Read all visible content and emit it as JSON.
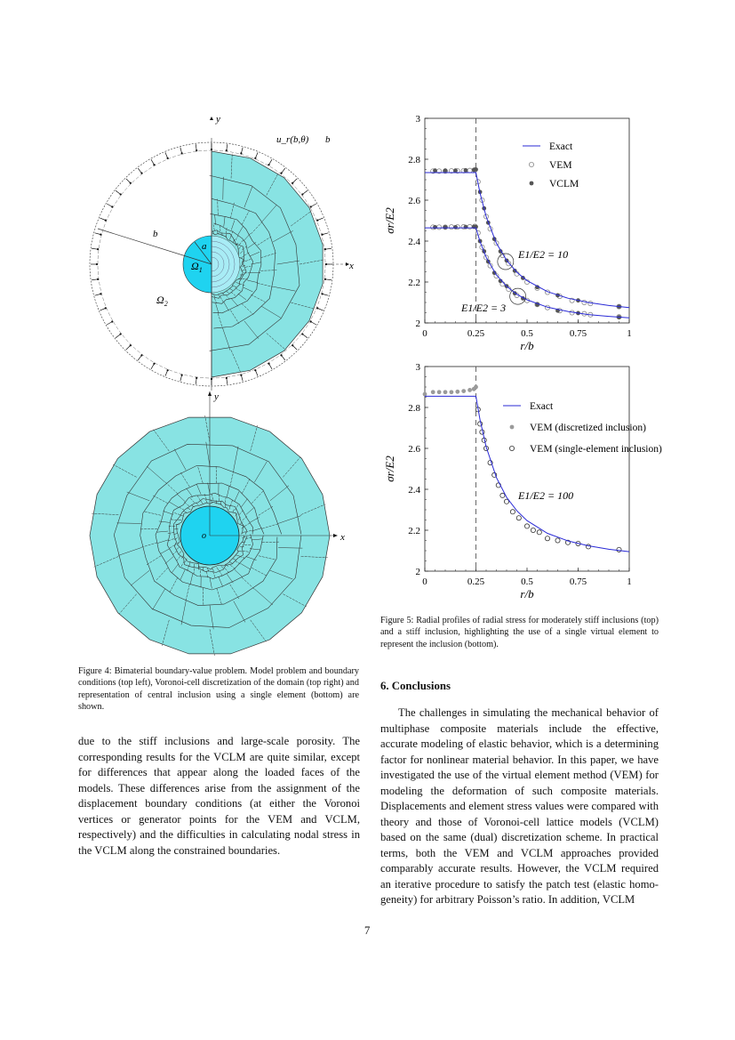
{
  "figure4": {
    "labels": {
      "y_top": "y",
      "x_top": "x",
      "u_r": "u_r(b,θ)",
      "b_top": "b",
      "b_radius": "b",
      "a_radius": "a",
      "omega1": "Ω1",
      "omega2": "Ω2",
      "y_bottom": "y",
      "x_bottom": "x",
      "origin": "o"
    },
    "colors": {
      "matrix": "#88e3e3",
      "inclusion": "#1fd3f0"
    },
    "caption": "Figure 4: Bimaterial boundary-value problem. Model problem and boundary conditions (top left), Voronoi-cell discretization of the domain (top right) and representation of central inclusion using a single element (bottom) are shown."
  },
  "figure5": {
    "caption": "Figure 5: Radial profiles of radial stress for moderately stiff inclusions (top) and a stiff inclusion, highlighting the use of a single virtual element to represent the inclusion (bottom)."
  },
  "chart_data": [
    {
      "type": "scatter",
      "xlabel": "r/b",
      "ylabel": "σr/E2",
      "xlim": [
        0,
        1
      ],
      "ylim": [
        2,
        3
      ],
      "xticks": [
        "0",
        "0.25",
        "0.5",
        "0.75",
        "1"
      ],
      "yticks": [
        "2",
        "2.2",
        "2.4",
        "2.6",
        "2.8",
        "3"
      ],
      "grid": false,
      "legend_placement": "top-right",
      "reference_line_x": 0.25,
      "legend": [
        "Exact",
        "VEM",
        "VCLM"
      ],
      "annotations": [
        {
          "text": "E1/E2 = 10",
          "x": 0.4,
          "y": 2.3
        },
        {
          "text": "E1/E2 = 3",
          "x": 0.45,
          "y": 2.13
        }
      ],
      "series": [
        {
          "name": "Exact",
          "kind": "line",
          "color": "#2a2ad6",
          "group": "E1/E2 = 10",
          "x": [
            0,
            0.25,
            0.27,
            0.3,
            0.35,
            0.4,
            0.45,
            0.5,
            0.6,
            0.7,
            0.8,
            0.9,
            1
          ],
          "y": [
            2.735,
            2.735,
            2.635,
            2.52,
            2.39,
            2.306,
            2.248,
            2.207,
            2.153,
            2.121,
            2.1,
            2.085,
            2.075
          ]
        },
        {
          "name": "Exact",
          "kind": "line",
          "color": "#2a2ad6",
          "group": "E1/E2 = 3",
          "x": [
            0,
            0.25,
            0.27,
            0.3,
            0.35,
            0.4,
            0.45,
            0.5,
            0.6,
            0.7,
            0.8,
            0.9,
            1
          ],
          "y": [
            2.465,
            2.465,
            2.398,
            2.321,
            2.235,
            2.179,
            2.14,
            2.113,
            2.077,
            2.056,
            2.041,
            2.032,
            2.025
          ]
        },
        {
          "name": "VEM",
          "kind": "open",
          "color": "#8a8a8a",
          "group": "E1/E2 = 10",
          "x": [
            0.04,
            0.07,
            0.1,
            0.13,
            0.16,
            0.19,
            0.22,
            0.245,
            0.26,
            0.28,
            0.3,
            0.32,
            0.35,
            0.38,
            0.41,
            0.45,
            0.5,
            0.55,
            0.6,
            0.66,
            0.72,
            0.78,
            0.81,
            0.95
          ],
          "y": [
            2.742,
            2.742,
            2.742,
            2.743,
            2.743,
            2.744,
            2.745,
            2.748,
            2.69,
            2.6,
            2.52,
            2.46,
            2.39,
            2.33,
            2.29,
            2.24,
            2.2,
            2.17,
            2.15,
            2.13,
            2.11,
            2.1,
            2.095,
            2.08
          ]
        },
        {
          "name": "VEM",
          "kind": "open",
          "color": "#8a8a8a",
          "group": "E1/E2 = 3",
          "x": [
            0.04,
            0.07,
            0.1,
            0.13,
            0.16,
            0.19,
            0.22,
            0.245,
            0.26,
            0.28,
            0.3,
            0.32,
            0.35,
            0.38,
            0.41,
            0.45,
            0.5,
            0.55,
            0.6,
            0.66,
            0.72,
            0.78,
            0.81,
            0.95
          ],
          "y": [
            2.468,
            2.468,
            2.468,
            2.469,
            2.469,
            2.47,
            2.47,
            2.472,
            2.44,
            2.37,
            2.32,
            2.28,
            2.23,
            2.19,
            2.165,
            2.135,
            2.11,
            2.09,
            2.075,
            2.06,
            2.05,
            2.045,
            2.04,
            2.03
          ]
        },
        {
          "name": "VCLM",
          "kind": "filled",
          "color": "#555555",
          "group": "E1/E2 = 10",
          "x": [
            0.05,
            0.1,
            0.15,
            0.2,
            0.24,
            0.25,
            0.27,
            0.29,
            0.31,
            0.34,
            0.37,
            0.4,
            0.44,
            0.48,
            0.55,
            0.65,
            0.75,
            0.95
          ],
          "y": [
            2.745,
            2.745,
            2.745,
            2.746,
            2.748,
            2.75,
            2.64,
            2.56,
            2.49,
            2.41,
            2.35,
            2.305,
            2.255,
            2.22,
            2.175,
            2.135,
            2.11,
            2.08
          ]
        },
        {
          "name": "VCLM",
          "kind": "filled",
          "color": "#555555",
          "group": "E1/E2 = 3",
          "x": [
            0.05,
            0.1,
            0.15,
            0.2,
            0.24,
            0.25,
            0.27,
            0.29,
            0.31,
            0.34,
            0.37,
            0.4,
            0.44,
            0.48,
            0.55,
            0.65,
            0.75,
            0.95
          ],
          "y": [
            2.468,
            2.468,
            2.468,
            2.469,
            2.47,
            2.47,
            2.4,
            2.35,
            2.3,
            2.245,
            2.205,
            2.18,
            2.145,
            2.12,
            2.09,
            2.06,
            2.048,
            2.028
          ]
        }
      ]
    },
    {
      "type": "scatter",
      "xlabel": "r/b",
      "ylabel": "σr/E2",
      "xlim": [
        0,
        1
      ],
      "ylim": [
        2,
        3
      ],
      "xticks": [
        "0",
        "0.25",
        "0.5",
        "0.75",
        "1"
      ],
      "yticks": [
        "2",
        "2.2",
        "2.4",
        "2.6",
        "2.8",
        "3"
      ],
      "grid": false,
      "legend_placement": "top-right",
      "reference_line_x": 0.25,
      "legend": [
        "Exact",
        "VEM (discretized inclusion)",
        "VEM (single-element inclusion)"
      ],
      "annotations": [
        {
          "text": "E1/E2 = 100",
          "x": 0.46,
          "y": 2.38
        }
      ],
      "series": [
        {
          "name": "Exact",
          "kind": "line",
          "color": "#2a2ad6",
          "x": [
            0,
            0.25,
            0.27,
            0.3,
            0.35,
            0.4,
            0.45,
            0.5,
            0.6,
            0.7,
            0.8,
            0.9,
            1
          ],
          "y": [
            2.855,
            2.855,
            2.74,
            2.608,
            2.458,
            2.361,
            2.295,
            2.247,
            2.185,
            2.148,
            2.124,
            2.107,
            2.095
          ]
        },
        {
          "name": "VEM (discretized inclusion)",
          "kind": "filled",
          "color": "#9a9a9a",
          "x": [
            0,
            0.04,
            0.07,
            0.1,
            0.13,
            0.16,
            0.19,
            0.22,
            0.24,
            0.25
          ],
          "y": [
            2.865,
            2.875,
            2.875,
            2.875,
            2.875,
            2.877,
            2.88,
            2.885,
            2.89,
            2.9
          ]
        },
        {
          "name": "VEM (single-element inclusion)",
          "kind": "open",
          "color": "#333333",
          "x": [
            0.26,
            0.27,
            0.28,
            0.29,
            0.3,
            0.32,
            0.34,
            0.36,
            0.38,
            0.4,
            0.43,
            0.46,
            0.5,
            0.53,
            0.56,
            0.6,
            0.65,
            0.7,
            0.75,
            0.8,
            0.95
          ],
          "y": [
            2.79,
            2.72,
            2.68,
            2.64,
            2.6,
            2.53,
            2.47,
            2.42,
            2.37,
            2.34,
            2.29,
            2.26,
            2.22,
            2.2,
            2.19,
            2.16,
            2.15,
            2.14,
            2.135,
            2.12,
            2.105
          ]
        }
      ]
    }
  ],
  "left_column": {
    "paragraph": "due to the stiff inclusions and large-scale porosity. The corresponding results for the VCLM are quite similar, except for differences that appear along the loaded faces of the models. These differences arise from the assign­ment of the displacement boundary conditions (at either the Voronoi vertices or generator points for the VEM and VCLM, respectively) and the difficulties in calculating nodal stress in the VCLM along the constrained bound­aries."
  },
  "right_column": {
    "heading": "6. Conclusions",
    "paragraph": "The challenges in simulating the mechanical behav­ior of multiphase composite materials include the effec­tive, accurate modeling of elastic behavior, which is a determining factor for nonlinear material behavior. In this paper, we have investigated the use of the virtual el­ement method (VEM) for modeling the deformation of such composite materials. Displacements and element stress values were compared with theory and those of Voronoi-cell lattice models (VCLM) based on the same (dual) discretization scheme. In practical terms, both the VEM and VCLM approaches provided comparably ac­curate results. However, the VCLM required an iter­ative procedure to satisfy the patch test (elastic homo­geneity) for arbitrary Poisson’s ratio. In addition, VCLM"
  },
  "page_number": "7"
}
